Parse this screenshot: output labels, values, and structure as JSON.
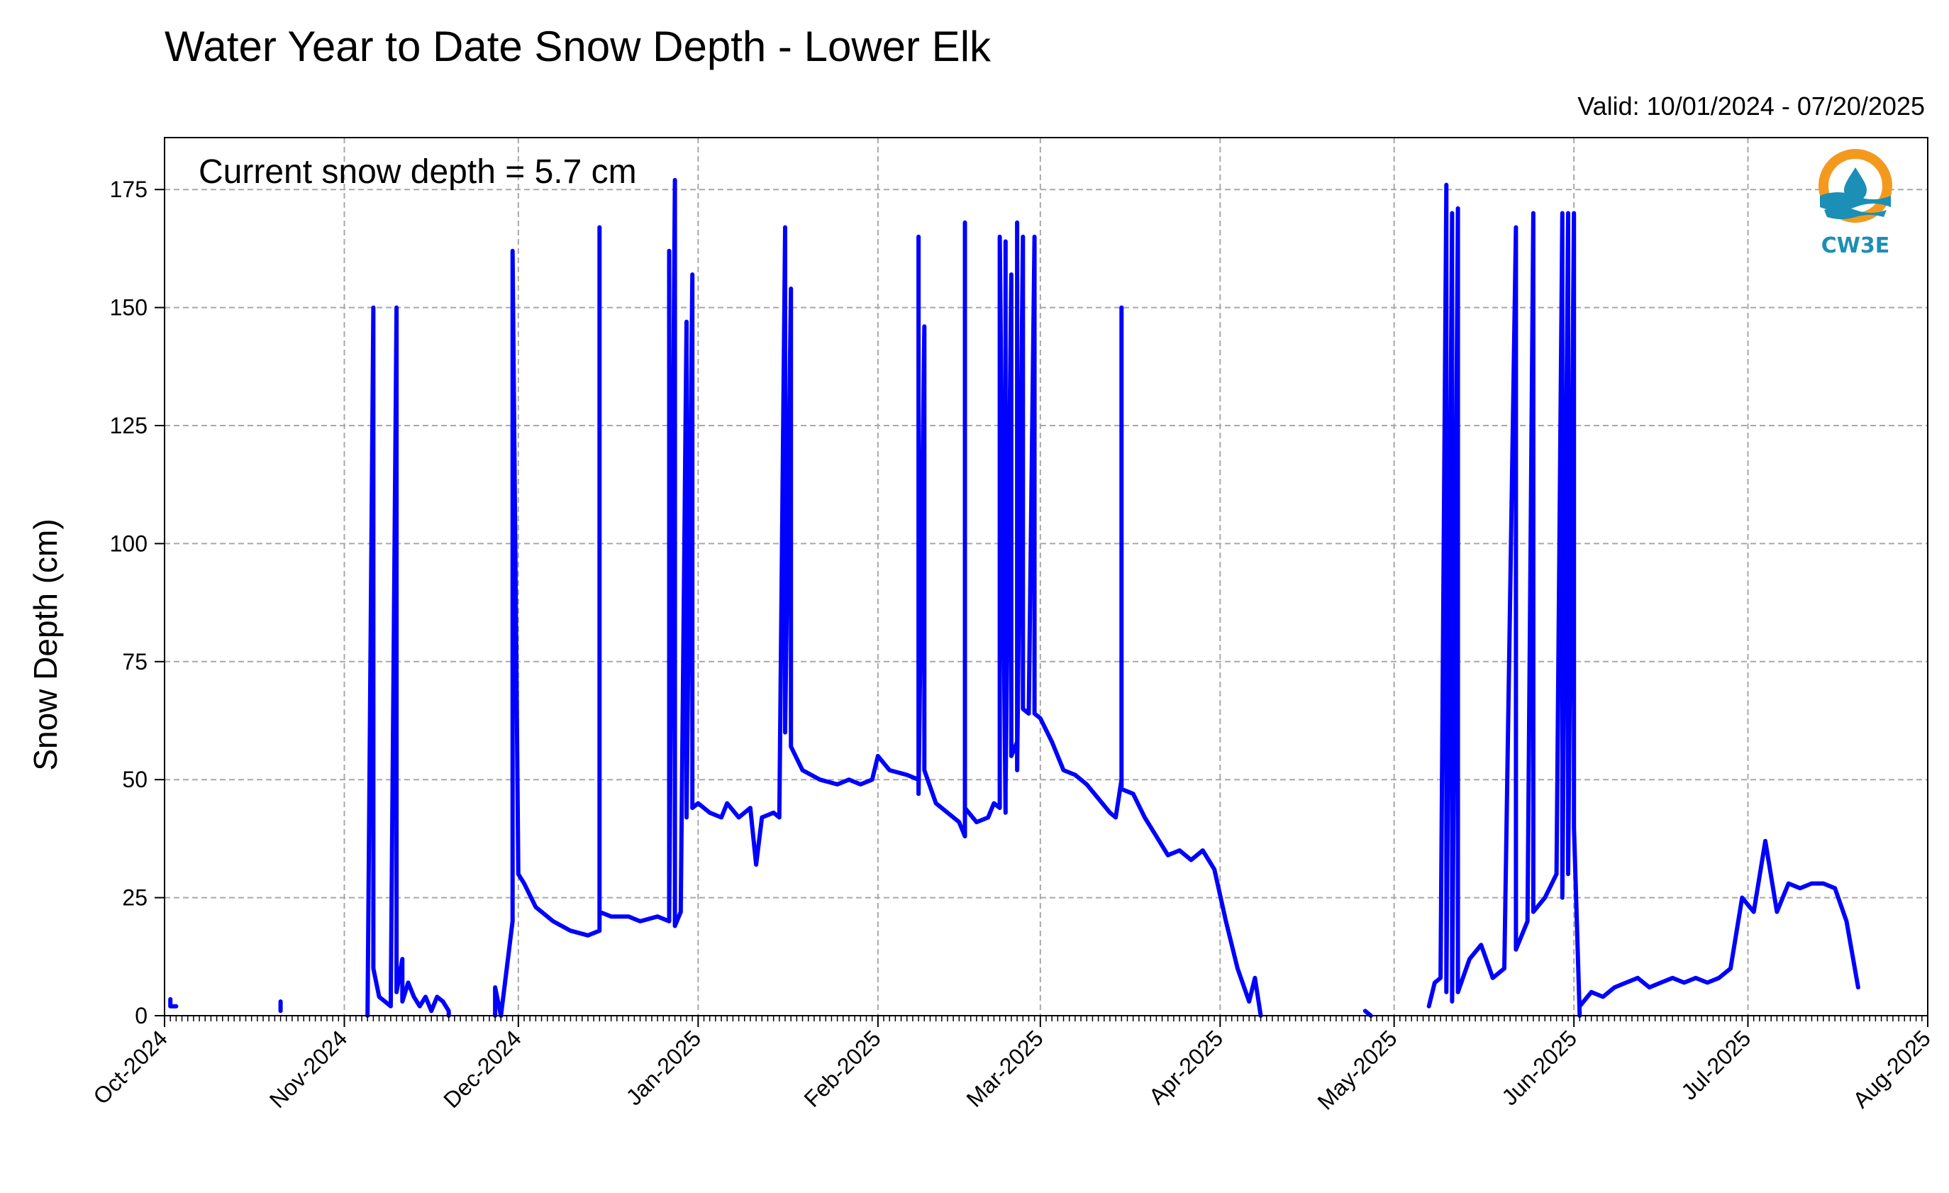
{
  "chart_data": {
    "type": "line",
    "title": "Water Year to Date Snow Depth - Lower Elk",
    "subtitle": "Valid: 10/01/2024 - 07/20/2025",
    "ylabel": "Snow Depth (cm)",
    "xlabel": "",
    "annotation": "Current snow depth = 5.7 cm",
    "ylim": [
      0,
      186
    ],
    "xlim": [
      "2024-10-01",
      "2025-08-01"
    ],
    "yticks": [
      0,
      25,
      50,
      75,
      100,
      125,
      150,
      175
    ],
    "xticks": [
      "Oct-2024",
      "Nov-2024",
      "Dec-2024",
      "Jan-2025",
      "Feb-2025",
      "Mar-2025",
      "Apr-2025",
      "May-2025",
      "Jun-2025",
      "Jul-2025",
      "Aug-2025"
    ],
    "xtick_dates": [
      "2024-10-01",
      "2024-11-01",
      "2024-12-01",
      "2025-01-01",
      "2025-02-01",
      "2025-03-01",
      "2025-04-01",
      "2025-05-01",
      "2025-06-01",
      "2025-07-01",
      "2025-08-01"
    ],
    "grid": true,
    "line_color": "#0000ff",
    "series": [
      {
        "segments": [
          [
            [
              "2024-10-02",
              3.5
            ],
            [
              "2024-10-02",
              2.0
            ],
            [
              "2024-10-03",
              2.0
            ]
          ],
          [
            [
              "2024-10-21",
              3.0
            ],
            [
              "2024-10-21",
              1.0
            ]
          ],
          [
            [
              "2024-11-05",
              0
            ],
            [
              "2024-11-06",
              150
            ],
            [
              "2024-11-06",
              10
            ],
            [
              "2024-11-07",
              4
            ],
            [
              "2024-11-08",
              3
            ],
            [
              "2024-11-09",
              2
            ],
            [
              "2024-11-10",
              150
            ],
            [
              "2024-11-10",
              5
            ],
            [
              "2024-11-11",
              12
            ],
            [
              "2024-11-11",
              3
            ],
            [
              "2024-11-12",
              7
            ],
            [
              "2024-11-13",
              4
            ],
            [
              "2024-11-14",
              2
            ],
            [
              "2024-11-15",
              4
            ],
            [
              "2024-11-16",
              1
            ],
            [
              "2024-11-17",
              4
            ],
            [
              "2024-11-18",
              3
            ],
            [
              "2024-11-19",
              1
            ],
            [
              "2024-11-19",
              0
            ]
          ],
          [
            [
              "2024-11-27",
              0
            ],
            [
              "2024-11-27",
              6
            ],
            [
              "2024-11-28",
              0
            ],
            [
              "2024-11-29",
              10
            ],
            [
              "2024-11-30",
              20
            ],
            [
              "2024-11-30",
              162
            ],
            [
              "2024-12-01",
              30
            ],
            [
              "2024-12-02",
              28
            ],
            [
              "2024-12-04",
              23
            ],
            [
              "2024-12-07",
              20
            ],
            [
              "2024-12-10",
              18
            ],
            [
              "2024-12-13",
              17
            ],
            [
              "2024-12-15",
              18
            ],
            [
              "2024-12-15",
              167
            ],
            [
              "2024-12-15",
              22
            ],
            [
              "2024-12-17",
              21
            ],
            [
              "2024-12-20",
              21
            ],
            [
              "2024-12-22",
              20
            ],
            [
              "2024-12-25",
              21
            ],
            [
              "2024-12-27",
              20
            ],
            [
              "2024-12-27",
              162
            ],
            [
              "2024-12-27",
              21
            ],
            [
              "2024-12-28",
              177
            ],
            [
              "2024-12-28",
              19
            ],
            [
              "2024-12-29",
              22
            ],
            [
              "2024-12-30",
              147
            ],
            [
              "2024-12-30",
              42
            ],
            [
              "2024-12-31",
              157
            ],
            [
              "2024-12-31",
              44
            ],
            [
              "2025-01-01",
              45
            ],
            [
              "2025-01-03",
              43
            ],
            [
              "2025-01-05",
              42
            ],
            [
              "2025-01-06",
              45
            ],
            [
              "2025-01-08",
              42
            ],
            [
              "2025-01-10",
              44
            ],
            [
              "2025-01-11",
              32
            ],
            [
              "2025-01-12",
              42
            ],
            [
              "2025-01-14",
              43
            ],
            [
              "2025-01-15",
              42
            ],
            [
              "2025-01-16",
              167
            ],
            [
              "2025-01-16",
              60
            ],
            [
              "2025-01-17",
              154
            ],
            [
              "2025-01-17",
              57
            ],
            [
              "2025-01-19",
              52
            ],
            [
              "2025-01-22",
              50
            ],
            [
              "2025-01-25",
              49
            ],
            [
              "2025-01-27",
              50
            ],
            [
              "2025-01-29",
              49
            ],
            [
              "2025-01-31",
              50
            ],
            [
              "2025-02-01",
              55
            ],
            [
              "2025-02-03",
              52
            ],
            [
              "2025-02-06",
              51
            ],
            [
              "2025-02-08",
              50
            ],
            [
              "2025-02-08",
              165
            ],
            [
              "2025-02-08",
              47
            ],
            [
              "2025-02-09",
              146
            ],
            [
              "2025-02-09",
              52
            ],
            [
              "2025-02-11",
              45
            ],
            [
              "2025-02-13",
              43
            ],
            [
              "2025-02-15",
              41
            ],
            [
              "2025-02-16",
              38
            ],
            [
              "2025-02-16",
              168
            ],
            [
              "2025-02-16",
              44
            ],
            [
              "2025-02-18",
              41
            ],
            [
              "2025-02-20",
              42
            ],
            [
              "2025-02-21",
              45
            ],
            [
              "2025-02-22",
              44
            ],
            [
              "2025-02-22",
              165
            ],
            [
              "2025-02-23",
              43
            ],
            [
              "2025-02-23",
              164
            ],
            [
              "2025-02-23",
              48
            ],
            [
              "2025-02-24",
              157
            ],
            [
              "2025-02-24",
              55
            ],
            [
              "2025-02-25",
              58
            ],
            [
              "2025-02-25",
              168
            ],
            [
              "2025-02-25",
              52
            ],
            [
              "2025-02-26",
              165
            ],
            [
              "2025-02-26",
              65
            ],
            [
              "2025-02-27",
              64
            ],
            [
              "2025-02-28",
              165
            ],
            [
              "2025-02-28",
              64
            ],
            [
              "2025-03-01",
              63
            ],
            [
              "2025-03-03",
              58
            ],
            [
              "2025-03-05",
              52
            ],
            [
              "2025-03-07",
              51
            ],
            [
              "2025-03-09",
              49
            ],
            [
              "2025-03-11",
              46
            ],
            [
              "2025-03-13",
              43
            ],
            [
              "2025-03-14",
              42
            ],
            [
              "2025-03-15",
              50
            ],
            [
              "2025-03-15",
              150
            ],
            [
              "2025-03-15",
              48
            ],
            [
              "2025-03-17",
              47
            ],
            [
              "2025-03-19",
              42
            ],
            [
              "2025-03-21",
              38
            ],
            [
              "2025-03-23",
              34
            ],
            [
              "2025-03-25",
              35
            ],
            [
              "2025-03-27",
              33
            ],
            [
              "2025-03-29",
              35
            ],
            [
              "2025-03-31",
              31
            ],
            [
              "2025-04-02",
              20
            ],
            [
              "2025-04-04",
              10
            ],
            [
              "2025-04-06",
              3
            ],
            [
              "2025-04-07",
              8
            ],
            [
              "2025-04-08",
              0
            ]
          ],
          [
            [
              "2025-04-26",
              1
            ],
            [
              "2025-04-27",
              0
            ]
          ],
          [
            [
              "2025-05-07",
              2
            ],
            [
              "2025-05-08",
              7
            ],
            [
              "2025-05-09",
              8
            ],
            [
              "2025-05-10",
              176
            ],
            [
              "2025-05-10",
              5
            ],
            [
              "2025-05-11",
              170
            ],
            [
              "2025-05-11",
              3
            ],
            [
              "2025-05-12",
              171
            ],
            [
              "2025-05-12",
              5
            ],
            [
              "2025-05-14",
              12
            ],
            [
              "2025-05-16",
              15
            ],
            [
              "2025-05-18",
              8
            ],
            [
              "2025-05-20",
              10
            ],
            [
              "2025-05-22",
              167
            ],
            [
              "2025-05-22",
              14
            ],
            [
              "2025-05-24",
              20
            ],
            [
              "2025-05-25",
              170
            ],
            [
              "2025-05-25",
              22
            ],
            [
              "2025-05-27",
              25
            ],
            [
              "2025-05-29",
              30
            ],
            [
              "2025-05-30",
              170
            ],
            [
              "2025-05-30",
              25
            ],
            [
              "2025-05-31",
              170
            ],
            [
              "2025-05-31",
              30
            ],
            [
              "2025-06-01",
              170
            ],
            [
              "2025-06-01",
              40
            ],
            [
              "2025-06-02",
              0
            ]
          ],
          [
            [
              "2025-06-02",
              2
            ],
            [
              "2025-06-04",
              5
            ],
            [
              "2025-06-06",
              4
            ],
            [
              "2025-06-08",
              6
            ],
            [
              "2025-06-10",
              7
            ],
            [
              "2025-06-12",
              8
            ],
            [
              "2025-06-14",
              6
            ],
            [
              "2025-06-16",
              7
            ],
            [
              "2025-06-18",
              8
            ],
            [
              "2025-06-20",
              7
            ],
            [
              "2025-06-22",
              8
            ],
            [
              "2025-06-24",
              7
            ],
            [
              "2025-06-26",
              8
            ],
            [
              "2025-06-28",
              10
            ],
            [
              "2025-06-30",
              25
            ],
            [
              "2025-07-02",
              22
            ],
            [
              "2025-07-04",
              37
            ],
            [
              "2025-07-06",
              22
            ],
            [
              "2025-07-08",
              28
            ],
            [
              "2025-07-10",
              27
            ],
            [
              "2025-07-12",
              28
            ],
            [
              "2025-07-14",
              28
            ],
            [
              "2025-07-16",
              27
            ],
            [
              "2025-07-18",
              20
            ],
            [
              "2025-07-20",
              6
            ]
          ]
        ]
      }
    ]
  },
  "logo": {
    "text": "CW3E"
  }
}
